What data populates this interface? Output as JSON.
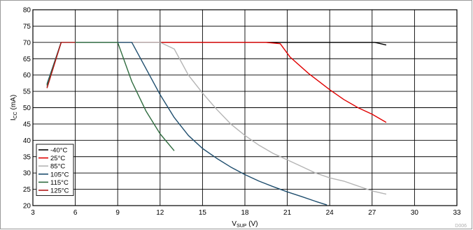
{
  "chart_data": {
    "type": "line",
    "title": "",
    "xlabel": "V",
    "xlabel_sub": "SUP",
    "xlabel_unit": " (V)",
    "ylabel": "I",
    "ylabel_sub": "CC",
    "ylabel_unit": " (mA)",
    "xlim": [
      3,
      33
    ],
    "ylim": [
      20,
      80
    ],
    "xticks": [
      3,
      6,
      9,
      12,
      15,
      18,
      21,
      24,
      27,
      30,
      33
    ],
    "yticks": [
      20,
      25,
      30,
      35,
      40,
      45,
      50,
      55,
      60,
      65,
      70,
      75,
      80
    ],
    "grid": true,
    "legend_position": "bottom-left",
    "figure_id": "D006",
    "series": [
      {
        "name": "-40°C",
        "color": "#000000",
        "points": [
          [
            4,
            57
          ],
          [
            5,
            70
          ],
          [
            6,
            70
          ],
          [
            8,
            70
          ],
          [
            10,
            70
          ],
          [
            12,
            70
          ],
          [
            14,
            70
          ],
          [
            16,
            70
          ],
          [
            18,
            70
          ],
          [
            20,
            70
          ],
          [
            22,
            70
          ],
          [
            24,
            70
          ],
          [
            26,
            70
          ],
          [
            27.2,
            70
          ],
          [
            28,
            69.2
          ]
        ]
      },
      {
        "name": "25°C",
        "color": "#e00000",
        "points": [
          [
            4,
            56.2
          ],
          [
            5,
            70
          ],
          [
            8,
            70
          ],
          [
            12,
            70
          ],
          [
            16,
            70
          ],
          [
            19.5,
            70
          ],
          [
            20.5,
            69.6
          ],
          [
            21.2,
            65.5
          ],
          [
            22.5,
            60.5
          ],
          [
            24,
            55.5
          ],
          [
            25,
            52.5
          ],
          [
            26,
            50
          ],
          [
            27,
            48
          ],
          [
            28,
            45.5
          ]
        ]
      },
      {
        "name": "85°C",
        "color": "#b4b4b4",
        "points": [
          [
            4,
            56.5
          ],
          [
            5,
            70
          ],
          [
            8,
            70
          ],
          [
            11,
            70
          ],
          [
            12,
            70
          ],
          [
            13,
            68
          ],
          [
            14,
            60
          ],
          [
            15,
            54.5
          ],
          [
            16,
            49.5
          ],
          [
            17,
            45
          ],
          [
            18,
            41.5
          ],
          [
            19,
            38.5
          ],
          [
            20,
            36
          ],
          [
            21,
            34
          ],
          [
            22,
            32
          ],
          [
            23,
            30
          ],
          [
            24,
            28.5
          ],
          [
            25,
            27.5
          ],
          [
            26,
            26
          ],
          [
            27,
            24.5
          ],
          [
            28,
            23.5
          ]
        ]
      },
      {
        "name": "105°C",
        "color": "#1f4e6e",
        "points": [
          [
            4,
            57.3
          ],
          [
            5,
            70
          ],
          [
            8,
            70
          ],
          [
            10,
            70
          ],
          [
            11,
            62
          ],
          [
            12,
            54
          ],
          [
            13,
            47
          ],
          [
            14,
            41.5
          ],
          [
            15,
            37.5
          ],
          [
            16,
            34.5
          ],
          [
            17,
            31.8
          ],
          [
            18,
            29.5
          ],
          [
            19,
            27.5
          ],
          [
            20,
            25.8
          ],
          [
            21,
            24.2
          ],
          [
            22,
            22.8
          ],
          [
            23,
            21.3
          ],
          [
            23.8,
            20.2
          ]
        ]
      },
      {
        "name": "115°C",
        "color": "#2e6b3e",
        "points": [
          [
            4,
            56.8
          ],
          [
            5,
            70
          ],
          [
            7,
            70
          ],
          [
            9,
            70
          ],
          [
            10,
            58
          ],
          [
            11,
            49
          ],
          [
            12,
            42
          ],
          [
            13,
            36.8
          ]
        ]
      },
      {
        "name": "125°C",
        "color": "#b01818",
        "points": [
          [
            4,
            56
          ],
          [
            5,
            70
          ],
          [
            6,
            70
          ]
        ]
      }
    ]
  }
}
